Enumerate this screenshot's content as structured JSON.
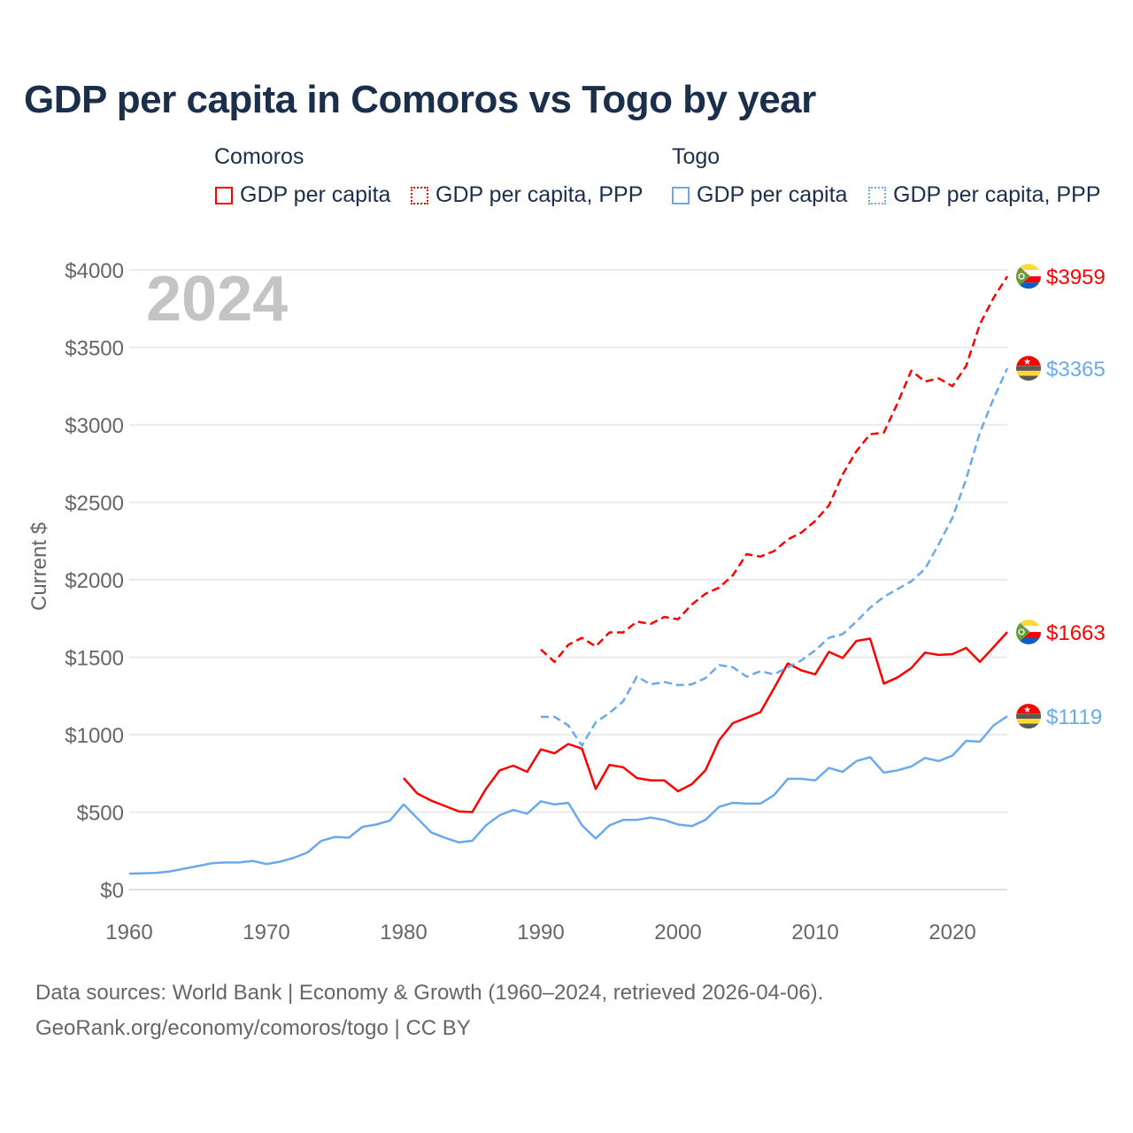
{
  "chart_data": {
    "type": "line",
    "title": "GDP per capita in Comoros vs Togo by year",
    "ylabel": "Current $",
    "xlabel": "",
    "xlim": [
      1960,
      2024
    ],
    "ylim": [
      0,
      4000
    ],
    "xticks": [
      "1960",
      "1970",
      "1980",
      "1990",
      "2000",
      "2010",
      "2020"
    ],
    "yticks": [
      "$0",
      "$500",
      "$1000",
      "$1500",
      "$2000",
      "$2500",
      "$3000",
      "$3500",
      "$4000"
    ],
    "year_label": "2024",
    "legend": {
      "groups": [
        "Comoros",
        "Togo"
      ],
      "items": [
        "GDP per capita",
        "GDP per capita, PPP",
        "GDP per capita",
        "GDP per capita, PPP"
      ]
    },
    "series": [
      {
        "name": "Comoros GDP per capita",
        "country": "Comoros",
        "color": "#ff0000",
        "dashed": false,
        "start": 1980,
        "end_label": "$1663",
        "values": [
          720,
          620,
          575,
          540,
          505,
          500,
          650,
          770,
          800,
          760,
          905,
          880,
          940,
          910,
          650,
          805,
          790,
          720,
          705,
          705,
          635,
          680,
          770,
          965,
          1075,
          1110,
          1145,
          1300,
          1460,
          1415,
          1390,
          1535,
          1495,
          1605,
          1620,
          1330,
          1370,
          1430,
          1530,
          1515,
          1520,
          1560,
          1470,
          1565,
          1663
        ]
      },
      {
        "name": "Comoros GDP per capita, PPP",
        "country": "Comoros",
        "color": "#ff0000",
        "dashed": true,
        "start": 1990,
        "end_label": "$3959",
        "values": [
          1550,
          1470,
          1580,
          1625,
          1570,
          1660,
          1660,
          1730,
          1715,
          1760,
          1745,
          1840,
          1910,
          1950,
          2030,
          2165,
          2150,
          2185,
          2260,
          2305,
          2380,
          2480,
          2680,
          2830,
          2940,
          2950,
          3140,
          3350,
          3280,
          3300,
          3250,
          3380,
          3650,
          3820,
          3959
        ]
      },
      {
        "name": "Togo GDP per capita",
        "country": "Togo",
        "color": "#6aaaeb",
        "dashed": false,
        "start": 1960,
        "end_label": "$1119",
        "values": [
          103,
          105,
          108,
          118,
          135,
          152,
          170,
          175,
          175,
          185,
          165,
          180,
          205,
          240,
          315,
          340,
          335,
          405,
          420,
          445,
          550,
          460,
          370,
          335,
          305,
          315,
          415,
          480,
          515,
          490,
          570,
          550,
          560,
          415,
          330,
          415,
          450,
          450,
          465,
          450,
          420,
          410,
          450,
          535,
          560,
          555,
          555,
          610,
          715,
          715,
          705,
          785,
          760,
          830,
          855,
          755,
          770,
          795,
          850,
          830,
          865,
          960,
          955,
          1060,
          1119
        ]
      },
      {
        "name": "Togo GDP per capita, PPP",
        "country": "Togo",
        "color": "#6aaaeb",
        "dashed": true,
        "start": 1990,
        "end_label": "$3365",
        "values": [
          1115,
          1115,
          1060,
          930,
          1080,
          1140,
          1215,
          1375,
          1325,
          1340,
          1320,
          1325,
          1365,
          1450,
          1435,
          1375,
          1410,
          1390,
          1435,
          1480,
          1545,
          1625,
          1650,
          1730,
          1820,
          1890,
          1940,
          1990,
          2070,
          2230,
          2400,
          2650,
          2950,
          3170,
          3365
        ]
      }
    ]
  },
  "footer": {
    "line1": "Data sources: World Bank | Economy & Growth (1960–2024, retrieved 2026-04-06).",
    "line2": "GeoRank.org/economy/comoros/togo | CC BY"
  }
}
